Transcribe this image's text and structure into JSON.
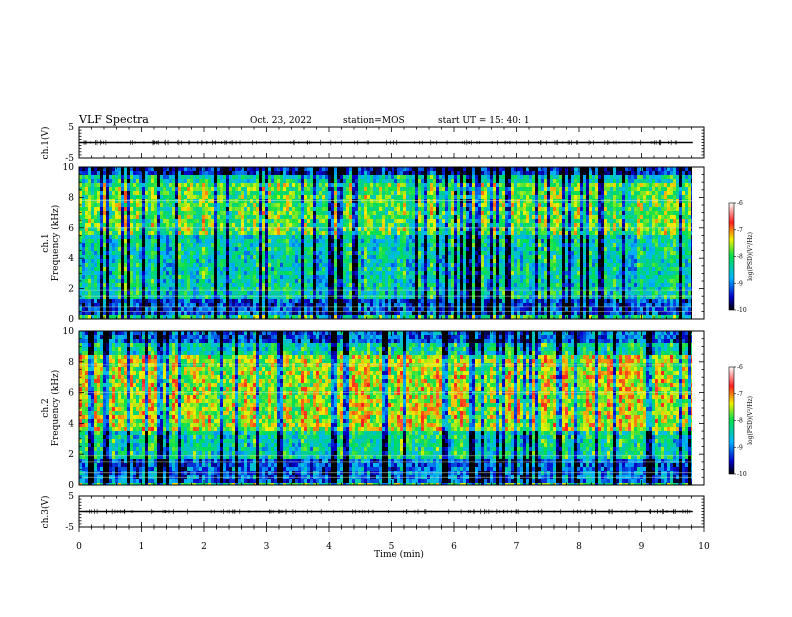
{
  "header": {
    "title": "VLF Spectra",
    "date": "Oct. 23, 2022",
    "station": "station=MOS",
    "start": "start  UT  =   15: 40: 1"
  },
  "chart_data": [
    {
      "type": "line",
      "name": "ch1-waveform",
      "ylabel": "ch.1(V)",
      "ylim": [
        -5,
        5
      ],
      "yticks": [
        5,
        -5
      ],
      "x_range": [
        0,
        10
      ],
      "x_end": 9.82,
      "level": 0
    },
    {
      "type": "heatmap",
      "name": "ch1-spectrogram",
      "ylabel": "ch.1\nFrequency (kHz)",
      "ylabel_lines": [
        "ch.1",
        "Frequency (kHz)"
      ],
      "ylim": [
        0,
        10
      ],
      "yticks": [
        0,
        2,
        4,
        6,
        8,
        10
      ],
      "x_range": [
        0,
        10
      ],
      "x_end": 9.82,
      "colorbar": {
        "title": "log(PSD)(V²/Hz)",
        "range": [
          -10,
          -6
        ],
        "ticks": [
          -6,
          -7,
          -8,
          -9,
          -10
        ]
      }
    },
    {
      "type": "heatmap",
      "name": "ch2-spectrogram",
      "ylabel": "ch.2\nFrequency (kHz)",
      "ylabel_lines": [
        "ch.2",
        "Frequency (kHz)"
      ],
      "ylim": [
        0,
        10
      ],
      "yticks": [
        0,
        2,
        4,
        6,
        8,
        10
      ],
      "x_range": [
        0,
        10
      ],
      "x_end": 9.82,
      "colorbar": {
        "title": "log(PSD)(V²/Hz)",
        "range": [
          -10,
          -6
        ],
        "ticks": [
          -6,
          -7,
          -8,
          -9,
          -10
        ]
      }
    },
    {
      "type": "line",
      "name": "ch3-waveform",
      "ylabel": "ch.3(V)",
      "ylim": [
        -5,
        5
      ],
      "yticks": [
        5,
        -5
      ],
      "x_range": [
        0,
        10
      ],
      "x_end": 9.82,
      "level": 0
    }
  ],
  "xaxis": {
    "label": "Time  (min)",
    "ticks": [
      0,
      1,
      2,
      3,
      4,
      5,
      6,
      7,
      8,
      9,
      10
    ]
  }
}
